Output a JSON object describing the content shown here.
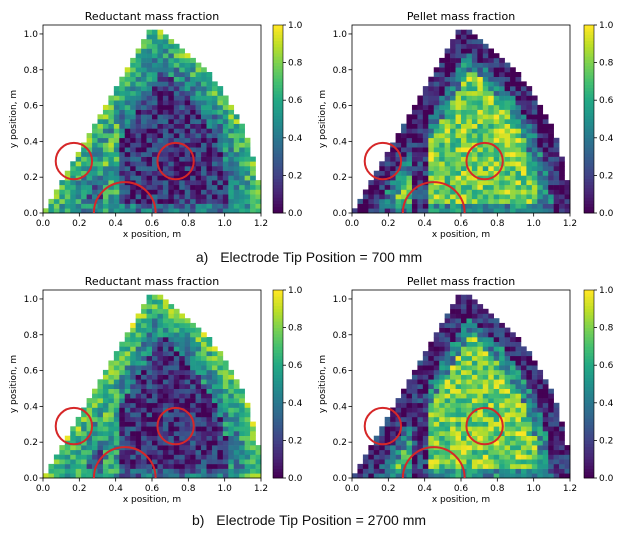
{
  "captions": {
    "a": {
      "letter": "a)",
      "text": "Electrode Tip Position = 700 mm"
    },
    "b": {
      "letter": "b)",
      "text": "Electrode Tip Position = 2700 mm"
    }
  },
  "colorscale": {
    "name": "viridis",
    "ticks": [
      "0.0",
      "0.2",
      "0.4",
      "0.6",
      "0.8",
      "1.0"
    ]
  },
  "chart_data": [
    {
      "type": "heatmap",
      "title": "Reductant mass fraction",
      "xlabel": "x position, m",
      "ylabel": "y position, m",
      "xlim": [
        0,
        1.2
      ],
      "ylim": [
        0,
        1.05
      ],
      "xticks": [
        "0.0",
        "0.2",
        "0.4",
        "0.6",
        "0.8",
        "1.0",
        "1.2"
      ],
      "yticks": [
        "0.0",
        "0.2",
        "0.4",
        "0.6",
        "0.8",
        "1.0"
      ],
      "clim": [
        0,
        1
      ],
      "domain": "sector with apex (0.6, 1.04), left edge to (0,0), arc to (1.2,0)",
      "pattern": {
        "base": 0.12,
        "rim": 0.75,
        "left_low": 0.25,
        "channel": 0.6,
        "center_low": 0.15,
        "noise": 0.22
      },
      "circles": [
        {
          "cx": 0.17,
          "cy": 0.29,
          "r": 0.1
        },
        {
          "cx": 0.73,
          "cy": 0.29,
          "r": 0.1
        },
        {
          "cx": 0.45,
          "cy": 0.0,
          "r": 0.17
        }
      ],
      "circle_color": "#d62728"
    },
    {
      "type": "heatmap",
      "title": "Pellet mass fraction",
      "xlabel": "x position, m",
      "ylabel": "y position, m",
      "xlim": [
        0,
        1.2
      ],
      "ylim": [
        0,
        1.05
      ],
      "xticks": [
        "0.0",
        "0.2",
        "0.4",
        "0.6",
        "0.8",
        "1.0",
        "1.2"
      ],
      "yticks": [
        "0.0",
        "0.2",
        "0.4",
        "0.6",
        "0.8",
        "1.0"
      ],
      "clim": [
        0,
        1
      ],
      "domain": "sector with apex (0.6, 1.04), left edge to (0,0), arc to (1.2,0)",
      "pattern": {
        "base": 0.1,
        "rim": 0.08,
        "left_low": 0.72,
        "channel": 0.15,
        "center_low": 0.78,
        "noise": 0.22
      },
      "circles": [
        {
          "cx": 0.17,
          "cy": 0.29,
          "r": 0.1
        },
        {
          "cx": 0.73,
          "cy": 0.29,
          "r": 0.1
        },
        {
          "cx": 0.45,
          "cy": 0.0,
          "r": 0.17
        }
      ],
      "circle_color": "#d62728"
    },
    {
      "type": "heatmap",
      "title": "Reductant mass fraction",
      "xlabel": "x position, m",
      "ylabel": "y position, m",
      "xlim": [
        0,
        1.2
      ],
      "ylim": [
        0,
        1.05
      ],
      "xticks": [
        "0.0",
        "0.2",
        "0.4",
        "0.6",
        "0.8",
        "1.0",
        "1.2"
      ],
      "yticks": [
        "0.0",
        "0.2",
        "0.4",
        "0.6",
        "0.8",
        "1.0"
      ],
      "clim": [
        0,
        1
      ],
      "domain": "sector with apex (0.6, 1.04), left edge to (0,0), arc to (1.2,0)",
      "pattern": {
        "base": 0.12,
        "rim": 0.8,
        "left_low": 0.3,
        "channel": 0.55,
        "center_low": 0.14,
        "noise": 0.22
      },
      "circles": [
        {
          "cx": 0.17,
          "cy": 0.29,
          "r": 0.1
        },
        {
          "cx": 0.73,
          "cy": 0.29,
          "r": 0.1
        },
        {
          "cx": 0.45,
          "cy": 0.0,
          "r": 0.17
        }
      ],
      "circle_color": "#d62728"
    },
    {
      "type": "heatmap",
      "title": "Pellet mass fraction",
      "xlabel": "x position, m",
      "ylabel": "y position, m",
      "xlim": [
        0,
        1.2
      ],
      "ylim": [
        0,
        1.05
      ],
      "xticks": [
        "0.0",
        "0.2",
        "0.4",
        "0.6",
        "0.8",
        "1.0",
        "1.2"
      ],
      "yticks": [
        "0.0",
        "0.2",
        "0.4",
        "0.6",
        "0.8",
        "1.0"
      ],
      "clim": [
        0,
        1
      ],
      "domain": "sector with apex (0.6, 1.04), left edge to (0,0), arc to (1.2,0)",
      "pattern": {
        "base": 0.1,
        "rim": 0.1,
        "left_low": 0.7,
        "channel": 0.18,
        "center_low": 0.78,
        "noise": 0.22
      },
      "circles": [
        {
          "cx": 0.17,
          "cy": 0.29,
          "r": 0.1
        },
        {
          "cx": 0.73,
          "cy": 0.29,
          "r": 0.1
        },
        {
          "cx": 0.45,
          "cy": 0.0,
          "r": 0.17
        }
      ],
      "circle_color": "#d62728"
    }
  ]
}
